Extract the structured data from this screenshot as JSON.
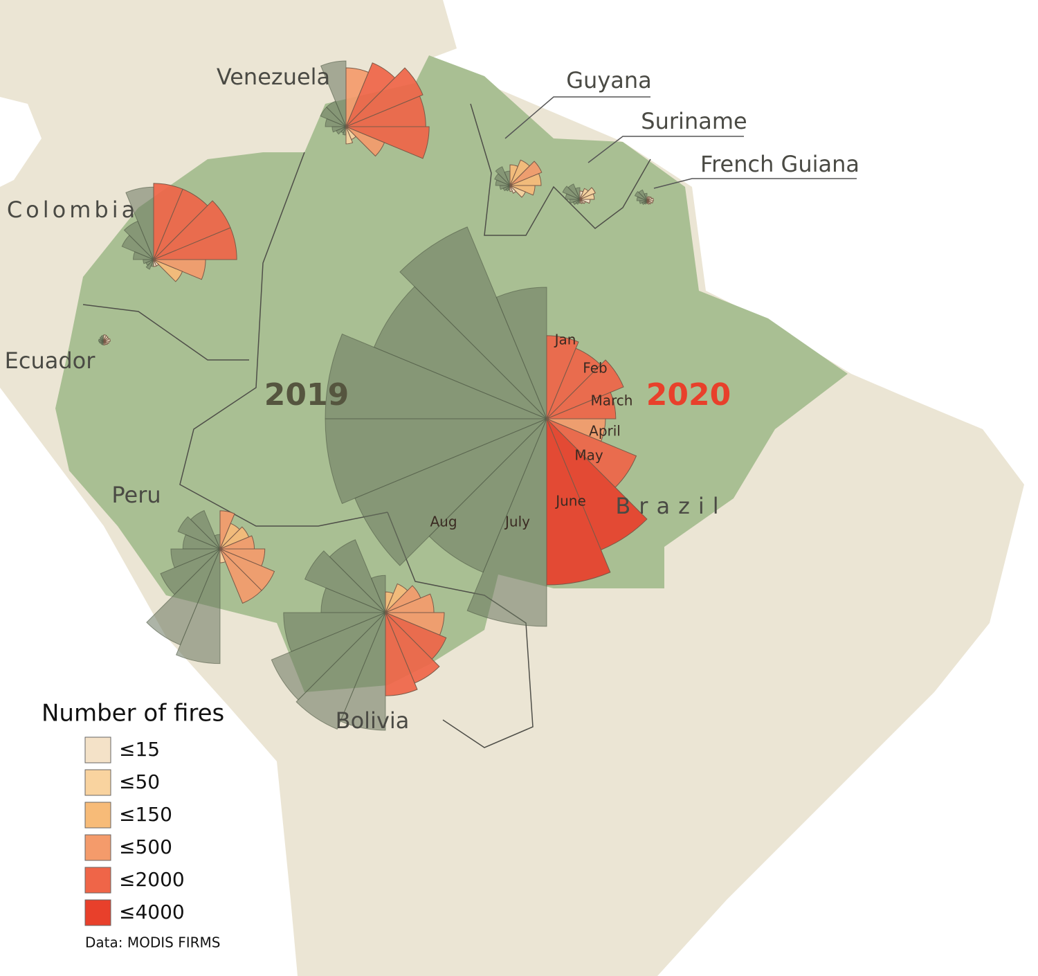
{
  "map": {
    "years": [
      "2019",
      "2020"
    ],
    "months": [
      "Jan",
      "Feb",
      "March",
      "April",
      "May",
      "June",
      "July",
      "Aug"
    ],
    "roses": [
      {
        "country": "Venezuela",
        "values": [
          [
            625,
            110,
            110,
            62,
            28,
            16,
            7,
            10
          ],
          [
            500,
            690,
            1000,
            920,
            1000,
            250,
            28,
            43
          ]
        ]
      },
      {
        "country": "Colombia",
        "values": [
          [
            760,
            250,
            170,
            60,
            16,
            10,
            16,
            7
          ],
          [
            840,
            840,
            1000,
            1000,
            390,
            140,
            7,
            7
          ]
        ]
      },
      {
        "country": "Ecuador",
        "values": [
          [
            5,
            4,
            3,
            4,
            3,
            2,
            2,
            2
          ],
          [
            6,
            5,
            4,
            6,
            4,
            3,
            2,
            2
          ]
        ]
      },
      {
        "country": "Peru",
        "values": [
          [
            30,
            250,
            300,
            200,
            350,
            600,
            1560,
            1900
          ],
          [
            210,
            110,
            140,
            170,
            290,
            500,
            500,
            28
          ]
        ]
      },
      {
        "country": "Bolivia",
        "values": [
          [
            200,
            900,
            1100,
            600,
            1500,
            2200,
            2300,
            2000
          ],
          [
            62,
            140,
            210,
            340,
            500,
            625,
            840,
            1000
          ]
        ]
      },
      {
        "country": "Brazil",
        "values": [
          [
            2500,
            6230,
            5050,
            7090,
            7090,
            6230,
            3990,
            6230
          ],
          [
            1000,
            840,
            1000,
            690,
            500,
            1360,
            2910,
            3990
          ]
        ]
      },
      {
        "country": "Guyana",
        "values": [
          [
            30,
            60,
            40,
            30,
            15,
            8,
            5,
            3
          ],
          [
            62,
            110,
            170,
            140,
            90,
            40,
            10,
            5
          ]
        ]
      },
      {
        "country": "Suriname",
        "values": [
          [
            20,
            40,
            50,
            30,
            15,
            8,
            4,
            2
          ],
          [
            10,
            20,
            40,
            30,
            15,
            5,
            3,
            2
          ]
        ]
      },
      {
        "country": "French Guiana",
        "values": [
          [
            8,
            20,
            25,
            15,
            8,
            4,
            2,
            1
          ],
          [
            2,
            3,
            4,
            6,
            5,
            3,
            2,
            1
          ]
        ]
      }
    ],
    "legend": {
      "title": "Number of fires",
      "bins": [
        {
          "value": 15,
          "label": "≤15",
          "color": "#f4e2c8"
        },
        {
          "value": 50,
          "label": "≤50",
          "color": "#f9d39f"
        },
        {
          "value": 150,
          "label": "≤150",
          "color": "#f7bb78"
        },
        {
          "value": 500,
          "label": "≤500",
          "color": "#f49b6b"
        },
        {
          "value": 2000,
          "label": "≤2000",
          "color": "#ef6548"
        },
        {
          "value": 4000,
          "label": "≤4000",
          "color": "#e8402b"
        }
      ]
    },
    "source": "Data: MODIS FIRMS"
  }
}
